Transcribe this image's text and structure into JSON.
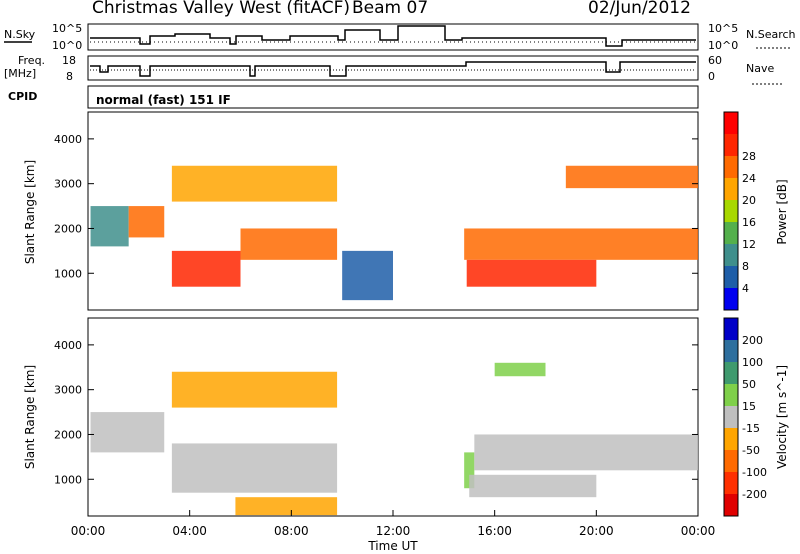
{
  "header": {
    "station": "Christmas Valley West (fitACF)",
    "beam": "Beam 07",
    "date": "02/Jun/2012"
  },
  "strip_labels": {
    "nsky": "N.Sky",
    "nsky_top": "10^5",
    "nsky_bottom": "10^0",
    "nsearch": "N.Search",
    "nsearch_top": "10^5",
    "nsearch_bottom": "10^0",
    "freq_label": "Freq.",
    "freq_unit": "[MHz]",
    "freq_top": "18",
    "freq_bottom": "8",
    "nave_label": "Nave",
    "nave_top": "60",
    "nave_bottom": "0",
    "cpid_label": "CPID",
    "cpid_value": "normal (fast) 151 IF"
  },
  "xaxis": {
    "title": "Time UT",
    "ticks": [
      "00:00",
      "04:00",
      "08:00",
      "12:00",
      "16:00",
      "20:00",
      "00:00"
    ]
  },
  "colors": {
    "frame": "#000000"
  },
  "chart_data": [
    {
      "type": "heatmap",
      "panel": "power",
      "ylabel": "Slant Range [km]",
      "yticks": [
        1000,
        2000,
        3000,
        4000
      ],
      "ylim": [
        180,
        4600
      ],
      "xlim_hours": [
        0,
        24
      ],
      "colorbar": {
        "label": "Power [dB]",
        "ticks": [
          "4",
          "8",
          "12",
          "16",
          "20",
          "24",
          "28"
        ],
        "colors": [
          "#0000f0",
          "#1e5ea8",
          "#3f8f8c",
          "#54b04c",
          "#a8d800",
          "#ffa500",
          "#ff6a00",
          "#ff2600",
          "#ff0000"
        ]
      },
      "bands": [
        {
          "t": [
            0.1,
            1.6
          ],
          "r": [
            1600,
            2500
          ],
          "color": "#3f8f8c"
        },
        {
          "t": [
            1.6,
            3.0
          ],
          "r": [
            1800,
            2500
          ],
          "color": "#ff6a00"
        },
        {
          "t": [
            3.3,
            6.0
          ],
          "r": [
            700,
            1500
          ],
          "color": "#ff2600"
        },
        {
          "t": [
            6.0,
            9.8
          ],
          "r": [
            1300,
            2000
          ],
          "color": "#ff6a00"
        },
        {
          "t": [
            3.3,
            9.8
          ],
          "r": [
            2600,
            3400
          ],
          "color": "#ffa500"
        },
        {
          "t": [
            10.0,
            12.0
          ],
          "r": [
            400,
            1500
          ],
          "color": "#1e5ea8"
        },
        {
          "t": [
            14.8,
            24.0
          ],
          "r": [
            1300,
            2000
          ],
          "color": "#ff6a00"
        },
        {
          "t": [
            14.9,
            20.0
          ],
          "r": [
            700,
            1300
          ],
          "color": "#ff2600"
        },
        {
          "t": [
            18.8,
            24.0
          ],
          "r": [
            2900,
            3400
          ],
          "color": "#ff6a00"
        }
      ]
    },
    {
      "type": "heatmap",
      "panel": "velocity",
      "ylabel": "Slant Range [km]",
      "yticks": [
        1000,
        2000,
        3000,
        4000
      ],
      "ylim": [
        180,
        4600
      ],
      "xlim_hours": [
        0,
        24
      ],
      "colorbar": {
        "label": "Velocity [m s^-1]",
        "ticks": [
          "200",
          "100",
          "50",
          "15",
          "-15",
          "-50",
          "-100",
          "-200"
        ],
        "colors": [
          "#0000c8",
          "#2e6f9e",
          "#3f9a6e",
          "#7fd04a",
          "#bfbfbf",
          "#ffa500",
          "#ff6a00",
          "#ff3000",
          "#e00000"
        ]
      },
      "bands": [
        {
          "t": [
            0.1,
            3.0
          ],
          "r": [
            1600,
            2500
          ],
          "color": "#bfbfbf"
        },
        {
          "t": [
            3.3,
            9.8
          ],
          "r": [
            700,
            1800
          ],
          "color": "#bfbfbf"
        },
        {
          "t": [
            5.8,
            9.8
          ],
          "r": [
            200,
            600
          ],
          "color": "#ffa500"
        },
        {
          "t": [
            3.3,
            9.8
          ],
          "r": [
            2600,
            3400
          ],
          "color": "#ffa500"
        },
        {
          "t": [
            14.8,
            15.2
          ],
          "r": [
            800,
            1600
          ],
          "color": "#7fd04a"
        },
        {
          "t": [
            15.2,
            24.0
          ],
          "r": [
            1200,
            2000
          ],
          "color": "#bfbfbf"
        },
        {
          "t": [
            15.0,
            20.0
          ],
          "r": [
            600,
            1100
          ],
          "color": "#bfbfbf"
        },
        {
          "t": [
            16.0,
            18.0
          ],
          "r": [
            3300,
            3600
          ],
          "color": "#7fd04a"
        }
      ]
    }
  ]
}
